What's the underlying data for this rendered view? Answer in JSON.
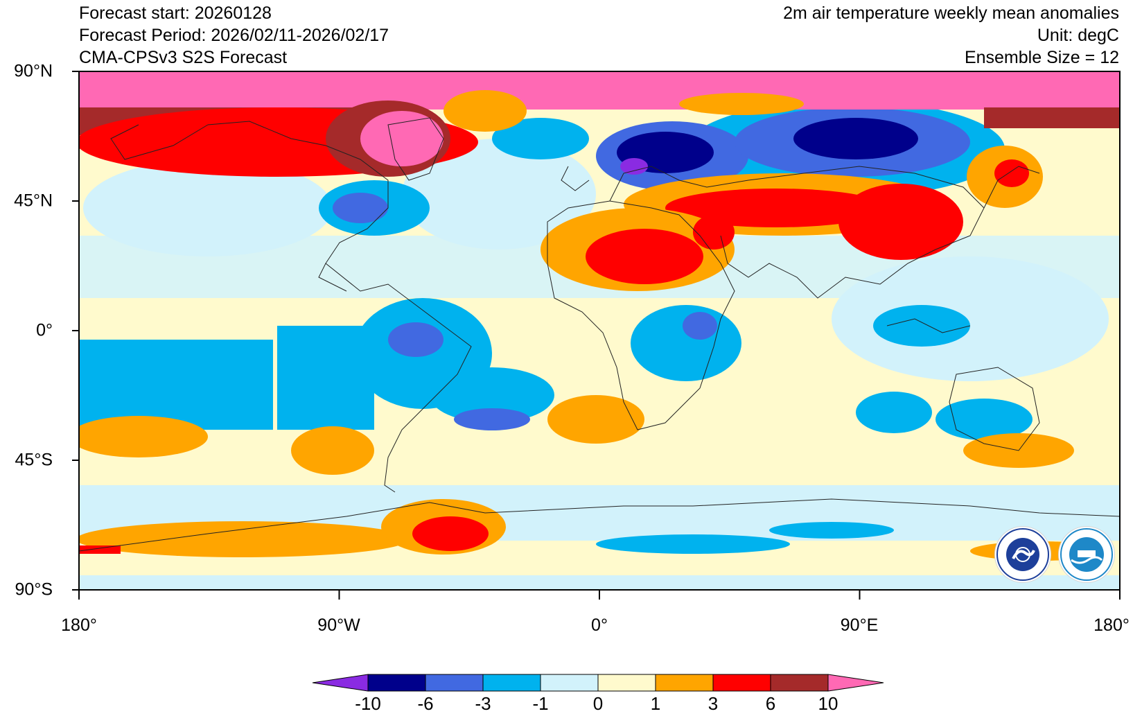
{
  "header": {
    "forecast_start": "Forecast start: 20260128",
    "forecast_period": "Forecast Period: 2026/02/11-2026/02/17",
    "model": "CMA-CPSv3 S2S Forecast",
    "title": "2m air temperature weekly mean anomalies",
    "unit": "Unit: degC",
    "ensemble": "Ensemble Size = 12"
  },
  "axes": {
    "lat_labels": [
      "90°N",
      "45°N",
      "0°",
      "45°S",
      "90°S"
    ],
    "lon_labels": [
      "180°",
      "90°W",
      "0°",
      "90°E",
      "180°"
    ]
  },
  "colorbar": {
    "ticks": [
      "-10",
      "-6",
      "-3",
      "-1",
      "0",
      "1",
      "3",
      "6",
      "10"
    ],
    "colors": [
      "#8a2be2",
      "#00008b",
      "#4169e1",
      "#00b2ee",
      "#d2f2fb",
      "#fffacd",
      "#ffa500",
      "#ff0000",
      "#a52a2a",
      "#ff69b4"
    ]
  },
  "logos": {
    "cma": "cma-logo",
    "cemc": "cemc-logo"
  }
}
